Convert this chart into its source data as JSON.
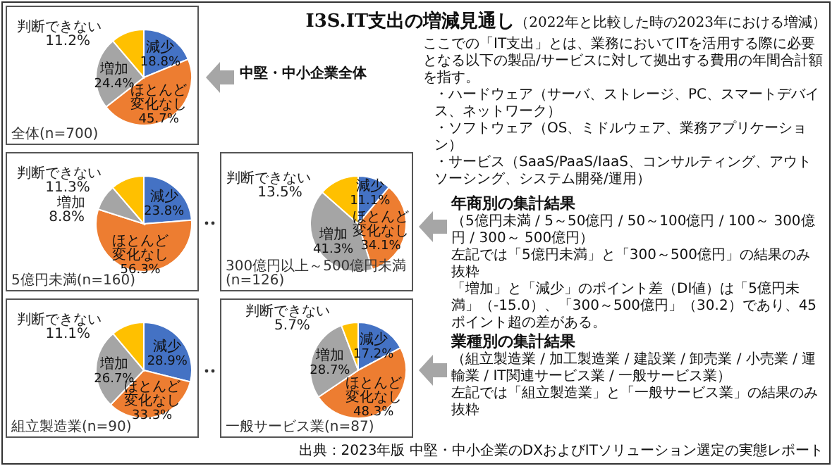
{
  "chart_data": [
    {
      "type": "other",
      "title": "I3S.IT支出の増減見通し",
      "subtitle": "（2022年と比較した時の2023年における増減）",
      "annotations": [
        "ここでの「IT支出」とは、業務においてITを活用する際に必要となる以下の製品/サービスに対して拠出する費用の年間合計額を指す。",
        "・ハードウェア（サーバ、ストレージ、PC、スマートデバイス、ネットワーク）",
        "・ソフトウェア（OS、ミドルウェア、業務アプリケーション）",
        "・サービス（SaaS/PaaS/IaaS、コンサルティング、アウトソーシング、システム開発/運用）",
        "年商別の集計結果",
        "（5億円未満 / 5～50億円 / 50～100億円 / 100～ 300億円 / 300～ 500億円）",
        "左記では「5億円未満」と「300～500億円」の結果のみ抜粋",
        "「増加」と「減少」のポイント差（DI値）は「5億円未満」（-15.0）、「300～500億円」（30.2）であり、45ポイント超の差がある。",
        "業種別の集計結果",
        "（組立製造業 / 加工製造業 / 建設業 / 卸売業 / 小売業 / 運輸業 / IT関連サービス業 / 一般サービス業）",
        "左記では「組立製造業」と「一般サービス業」の結果のみ抜粋",
        "中堅・中小企業全体",
        "出典：2023年版 中堅・中小企業のDXおよびITソリューション選定の実態レポート"
      ]
    },
    {
      "type": "pie",
      "categories": [
        "減少",
        "ほとんど変化なし",
        "増加",
        "判断できない"
      ],
      "values": [
        18.8,
        45.7,
        24.4,
        11.2
      ],
      "value_labels": [
        "18.8%",
        "45.7%",
        "24.4%",
        "11.2%"
      ],
      "colors": [
        "#4472c4",
        "#ed7d31",
        "#a5a5a5",
        "#ffc000"
      ],
      "annotations": [
        "全体(n=700)"
      ]
    },
    {
      "type": "pie",
      "categories": [
        "減少",
        "ほとんど変化なし",
        "増加",
        "判断できない"
      ],
      "values": [
        23.8,
        56.3,
        8.8,
        11.3
      ],
      "value_labels": [
        "23.8%",
        "56.3%",
        "8.8%",
        "11.3%"
      ],
      "colors": [
        "#4472c4",
        "#ed7d31",
        "#a5a5a5",
        "#ffc000"
      ],
      "annotations": [
        "5億円未満(n=160)"
      ]
    },
    {
      "type": "pie",
      "categories": [
        "減少",
        "ほとんど変化なし",
        "増加",
        "判断できない"
      ],
      "values": [
        11.1,
        34.1,
        41.3,
        13.5
      ],
      "value_labels": [
        "11.1%",
        "34.1%",
        "41.3%",
        "13.5%"
      ],
      "colors": [
        "#4472c4",
        "#ed7d31",
        "#a5a5a5",
        "#ffc000"
      ],
      "annotations": [
        "300億円以上～500億円未満(n=126)"
      ]
    },
    {
      "type": "pie",
      "categories": [
        "減少",
        "ほとんど変化なし",
        "増加",
        "判断できない"
      ],
      "values": [
        28.9,
        33.3,
        26.7,
        11.1
      ],
      "value_labels": [
        "28.9%",
        "33.3%",
        "26.7%",
        "11.1%"
      ],
      "colors": [
        "#4472c4",
        "#ed7d31",
        "#a5a5a5",
        "#ffc000"
      ],
      "annotations": [
        "組立製造業(n=90)"
      ]
    },
    {
      "type": "pie",
      "categories": [
        "減少",
        "ほとんど変化なし",
        "増加",
        "判断できない"
      ],
      "values": [
        17.2,
        48.3,
        28.7,
        5.7
      ],
      "value_labels": [
        "17.2%",
        "48.3%",
        "28.7%",
        "5.7%"
      ],
      "colors": [
        "#4472c4",
        "#ed7d31",
        "#a5a5a5",
        "#ffc000"
      ],
      "annotations": [
        "一般サービス業(n=87)"
      ]
    }
  ]
}
